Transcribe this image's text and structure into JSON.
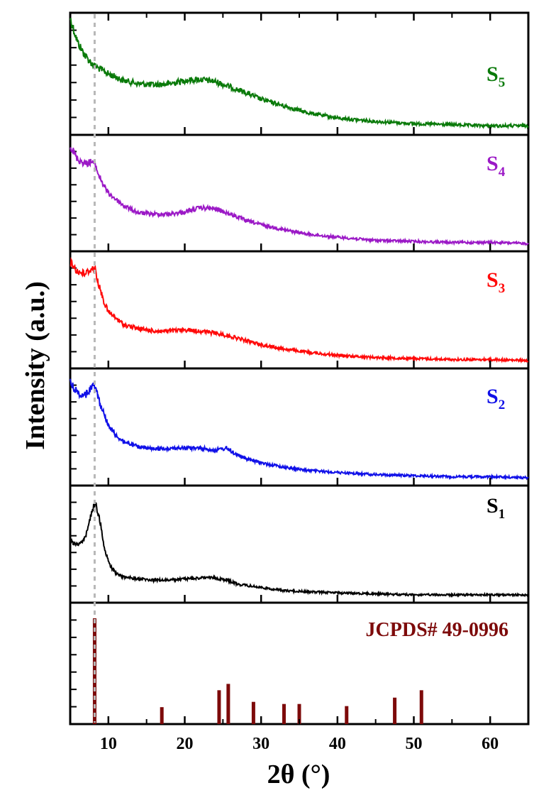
{
  "chart_data": {
    "type": "line",
    "title": "",
    "xlabel": "2θ (°)",
    "ylabel": "Intensity (a.u.)",
    "xlim": [
      5,
      65
    ],
    "x_ticks": [
      10,
      20,
      30,
      40,
      50,
      60
    ],
    "x_tick_labels": [
      "10",
      "20",
      "30",
      "40",
      "50",
      "60"
    ],
    "y_ticks_shown": false,
    "reference_line_x": 8.2,
    "series": [
      {
        "name": "S5",
        "label_main": "S",
        "label_sub": "5",
        "color": "#0a7a0a",
        "x": [
          5,
          6,
          7,
          8,
          9,
          10,
          12,
          14,
          16,
          18,
          20,
          22,
          24,
          26,
          28,
          30,
          33,
          36,
          40,
          45,
          50,
          55,
          60,
          65
        ],
        "values": [
          1.0,
          0.78,
          0.66,
          0.58,
          0.54,
          0.5,
          0.44,
          0.41,
          0.4,
          0.41,
          0.44,
          0.45,
          0.43,
          0.38,
          0.33,
          0.27,
          0.21,
          0.15,
          0.1,
          0.07,
          0.05,
          0.04,
          0.03,
          0.03
        ],
        "noise": 0.035
      },
      {
        "name": "S4",
        "label_main": "S",
        "label_sub": "4",
        "color": "#9b19c6",
        "x": [
          5,
          6,
          7,
          7.8,
          8.2,
          8.8,
          9.5,
          10,
          11,
          12,
          14,
          16,
          18,
          20,
          22,
          24,
          26,
          28,
          30,
          33,
          36,
          40,
          45,
          50,
          55,
          60,
          65
        ],
        "values": [
          0.95,
          0.82,
          0.78,
          0.8,
          0.78,
          0.66,
          0.56,
          0.5,
          0.44,
          0.38,
          0.31,
          0.3,
          0.3,
          0.32,
          0.36,
          0.35,
          0.3,
          0.24,
          0.2,
          0.15,
          0.11,
          0.08,
          0.05,
          0.04,
          0.03,
          0.03,
          0.02
        ],
        "noise": 0.03
      },
      {
        "name": "S3",
        "label_main": "S",
        "label_sub": "3",
        "color": "#ff0a0a",
        "x": [
          5,
          6,
          7,
          7.6,
          8.2,
          8.8,
          9.5,
          10,
          11,
          12,
          14,
          16,
          18,
          20,
          22,
          24,
          26,
          28,
          30,
          33,
          36,
          40,
          45,
          50,
          55,
          60,
          65
        ],
        "values": [
          0.95,
          0.86,
          0.84,
          0.88,
          0.9,
          0.72,
          0.56,
          0.48,
          0.42,
          0.36,
          0.32,
          0.3,
          0.3,
          0.31,
          0.3,
          0.28,
          0.25,
          0.21,
          0.17,
          0.13,
          0.1,
          0.07,
          0.05,
          0.04,
          0.03,
          0.03,
          0.02
        ],
        "noise": 0.03
      },
      {
        "name": "S2",
        "label_main": "S",
        "label_sub": "2",
        "color": "#1010e8",
        "x": [
          5,
          6,
          7,
          7.8,
          8.3,
          9,
          10,
          11,
          12,
          14,
          16,
          18,
          20,
          22,
          24,
          25.5,
          26.5,
          28,
          30,
          33,
          36,
          40,
          45,
          50,
          55,
          60,
          65
        ],
        "values": [
          0.92,
          0.82,
          0.8,
          0.88,
          0.9,
          0.7,
          0.52,
          0.42,
          0.36,
          0.31,
          0.29,
          0.3,
          0.3,
          0.3,
          0.28,
          0.3,
          0.25,
          0.2,
          0.16,
          0.12,
          0.09,
          0.07,
          0.05,
          0.04,
          0.03,
          0.03,
          0.02
        ],
        "noise": 0.028
      },
      {
        "name": "S1",
        "label_main": "S",
        "label_sub": "1",
        "color": "#000000",
        "x": [
          5,
          6,
          7,
          7.8,
          8.3,
          8.9,
          9.5,
          10.2,
          11,
          12,
          14,
          16,
          18,
          20,
          22,
          24,
          25.5,
          27,
          30,
          33,
          36,
          40,
          45,
          50,
          55,
          60,
          65
        ],
        "values": [
          0.52,
          0.5,
          0.56,
          0.8,
          0.9,
          0.72,
          0.45,
          0.3,
          0.22,
          0.19,
          0.17,
          0.16,
          0.16,
          0.17,
          0.18,
          0.18,
          0.16,
          0.12,
          0.09,
          0.06,
          0.05,
          0.04,
          0.03,
          0.02,
          0.02,
          0.02,
          0.02
        ],
        "noise": 0.025
      }
    ],
    "reference_pattern": {
      "name": "JCPDS# 49-0996",
      "color": "#7d0a0a",
      "x": [
        8.2,
        17.0,
        24.5,
        25.7,
        29.0,
        33.0,
        35.0,
        41.2,
        47.5,
        51.0
      ],
      "values": [
        1.0,
        0.16,
        0.32,
        0.38,
        0.21,
        0.19,
        0.19,
        0.17,
        0.25,
        0.32
      ]
    }
  }
}
